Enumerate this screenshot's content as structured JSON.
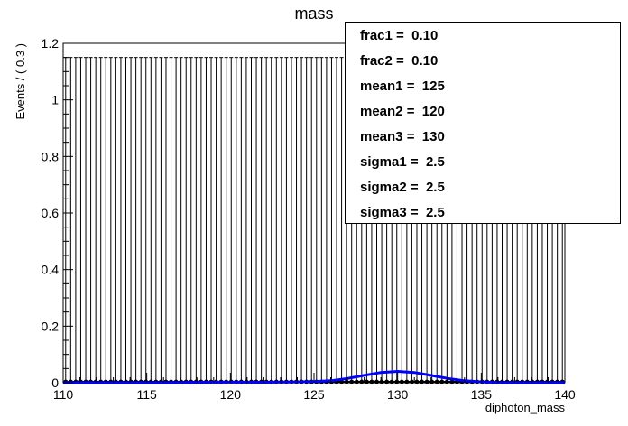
{
  "chart_data": {
    "type": "line",
    "title": "mass",
    "xlabel": "diphoton_mass",
    "ylabel": "Events / ( 0.3 )",
    "xlim": [
      110,
      140
    ],
    "ylim": [
      0,
      1.2
    ],
    "x_ticks": [
      "110",
      "115",
      "120",
      "125",
      "130",
      "135",
      "140"
    ],
    "y_ticks": [
      "0",
      "0.2",
      "0.4",
      "0.6",
      "0.8",
      "1",
      "1.2"
    ],
    "bin_width": 0.3,
    "hist_bin_count": 100,
    "hist_values_all": 0,
    "error_bar_upper": 1.15,
    "series": [
      {
        "type": "curve",
        "color": "#0000ff",
        "x": [
          110,
          112,
          114,
          116,
          118,
          120,
          122,
          124,
          125,
          126,
          127,
          128,
          129,
          130,
          131,
          132,
          133,
          134,
          135,
          136,
          138,
          140
        ],
        "y": [
          0.0,
          0.0,
          0.0,
          0.0,
          0.0015,
          0.002,
          0.0015,
          0.003,
          0.004,
          0.007,
          0.015,
          0.026,
          0.036,
          0.04,
          0.036,
          0.026,
          0.015,
          0.007,
          0.003,
          0.001,
          0.0,
          0.0
        ]
      }
    ],
    "stats": [
      "frac1 =  0.10",
      "frac2 =  0.10",
      "mean1 =  125",
      "mean2 =  120",
      "mean3 =  130",
      "sigma1 =  2.5",
      "sigma2 =  2.5",
      "sigma3 =  2.5"
    ],
    "legend_position": "top-right",
    "grid": false,
    "colors": {
      "axis": "#000000",
      "curve": "#0000ff",
      "points": "#000000"
    }
  }
}
